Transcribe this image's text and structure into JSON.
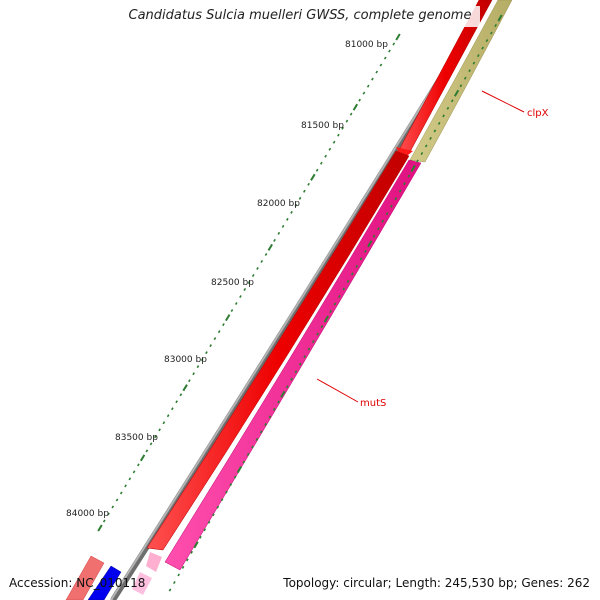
{
  "title": "Candidatus Sulcia muelleri GWSS, complete genome",
  "footer": {
    "accession": "Accession: NC_010118",
    "summary": "Topology: circular; Length: 245,530 bp; Genes: 262"
  },
  "ruler_labels": [
    "81000 bp",
    "81500 bp",
    "82000 bp",
    "82500 bp",
    "83000 bp",
    "83500 bp",
    "84000 bp"
  ],
  "genes": [
    {
      "name": "clpX",
      "strand": "reverse",
      "color": "#c8c07a"
    },
    {
      "name": "mutS",
      "strand": "reverse",
      "color": "#ff1493"
    },
    {
      "name": "",
      "strand": "forward",
      "color": "#ff0000"
    },
    {
      "name": "",
      "strand": "forward",
      "color": "#f08080"
    },
    {
      "name": "",
      "strand": "reverse",
      "color": "#0000ee"
    }
  ],
  "colors": {
    "backbone": "#808080",
    "forward_gene": "#ff0000",
    "clpX": "#c8c07a",
    "mutS": "#ff1493",
    "tick": "#2e7d32",
    "gene_label": "#e00000"
  }
}
